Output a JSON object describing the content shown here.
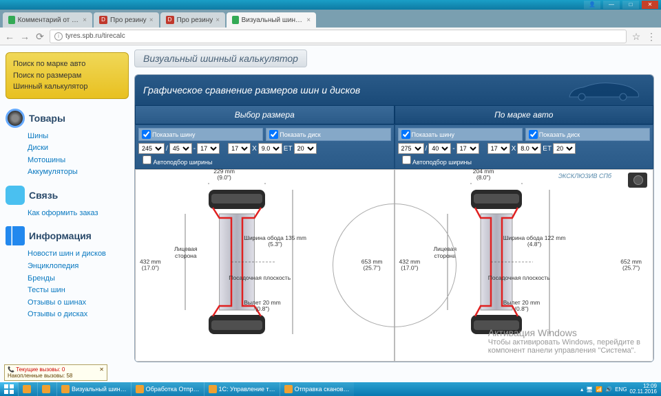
{
  "browser": {
    "tabs": [
      {
        "icon": "g",
        "label": "Комментарий от MAX-…"
      },
      {
        "icon": "D",
        "label": "Про резину"
      },
      {
        "icon": "D",
        "label": "Про резину"
      },
      {
        "icon": "g",
        "label": "Визуальный шинный к…",
        "active": true
      }
    ],
    "url": "tyres.spb.ru/tirecalc"
  },
  "sidebar": {
    "searchbox": [
      "Поиск по марке авто",
      "Поиск по размерам",
      "Шинный калькулятор"
    ],
    "cat1": {
      "title": "Товары",
      "links": [
        "Шины",
        "Диски",
        "Мотошины",
        "Аккумуляторы"
      ]
    },
    "cat2": {
      "title": "Связь",
      "links": [
        "Как оформить заказ"
      ]
    },
    "cat3": {
      "title": "Информация",
      "links": [
        "Новости шин и дисков",
        "Энциклопедия",
        "Бренды",
        "Тесты шин",
        "Отзывы о шинах",
        "Отзывы о дисках"
      ]
    }
  },
  "page_title": "Визуальный шинный калькулятор",
  "calc_header": "Графическое сравнение размеров шин и дисков",
  "mode_tabs": [
    "Выбор размера",
    "По марке авто"
  ],
  "ctrl_labels": {
    "show_tire": "Показать шину",
    "show_disk": "Показать диск",
    "auto": "Автоподбор ширины",
    "et": "ET",
    "x": "X"
  },
  "left": {
    "tire": {
      "width": "245",
      "profile": "45",
      "rim": "17"
    },
    "disk": {
      "rim": "17",
      "width": "9.0",
      "et": "20"
    }
  },
  "right": {
    "tire": {
      "width": "275",
      "profile": "40",
      "rim": "17"
    },
    "disk": {
      "rim": "17",
      "width": "8.0",
      "et": "20"
    }
  },
  "diag": {
    "eksk": "ЭКСКЛЮЗИВ СПб",
    "left": {
      "top_mm": "229 mm",
      "top_in": "(9.0\")",
      "rim_width": "Ширина обода 135 mm",
      "rim_width_in": "(5.3\")",
      "height_mm": "432 mm",
      "height_in": "(17.0\")",
      "total_mm": "653 mm",
      "total_in": "(25.7\")",
      "mount": "Посадочная плоскость",
      "offset": "Вылет 20 mm",
      "offset_in": "(0.8\")",
      "face": "Лицевая\nсторона"
    },
    "right": {
      "top_mm": "204 mm",
      "top_in": "(8.0\")",
      "rim_width": "Ширина обода 122 mm",
      "rim_width_in": "(4.8\")",
      "height_mm": "432 mm",
      "height_in": "(17.0\")",
      "total_mm": "652 mm",
      "total_in": "(25.7\")",
      "mount": "Посадочная плоскость",
      "offset": "Вылет 20 mm",
      "offset_in": "(0.8\")",
      "face": "Лицевая\nсторона"
    }
  },
  "watermark": {
    "t": "Активация Windows",
    "s": "Чтобы активировать Windows, перейдите в\nкомпонент панели управления \"Система\"."
  },
  "popup": {
    "l1": "Текущие вызовы: 0",
    "l2": "Накопленные вызовы: 58"
  },
  "taskbar": {
    "items": [
      "",
      "",
      "Визуальный шин…",
      "Обработка Отпр…",
      "1С: Управление т…",
      "Отправка сканов…"
    ],
    "lang": "ENG",
    "time": "12:09",
    "date": "02.11.2016"
  },
  "colors": {
    "tire_dark": "#2a2a2a",
    "tire_light": "#888",
    "rim": "#c8c8d0",
    "rim_edge": "#999",
    "contour": "#e02020"
  }
}
